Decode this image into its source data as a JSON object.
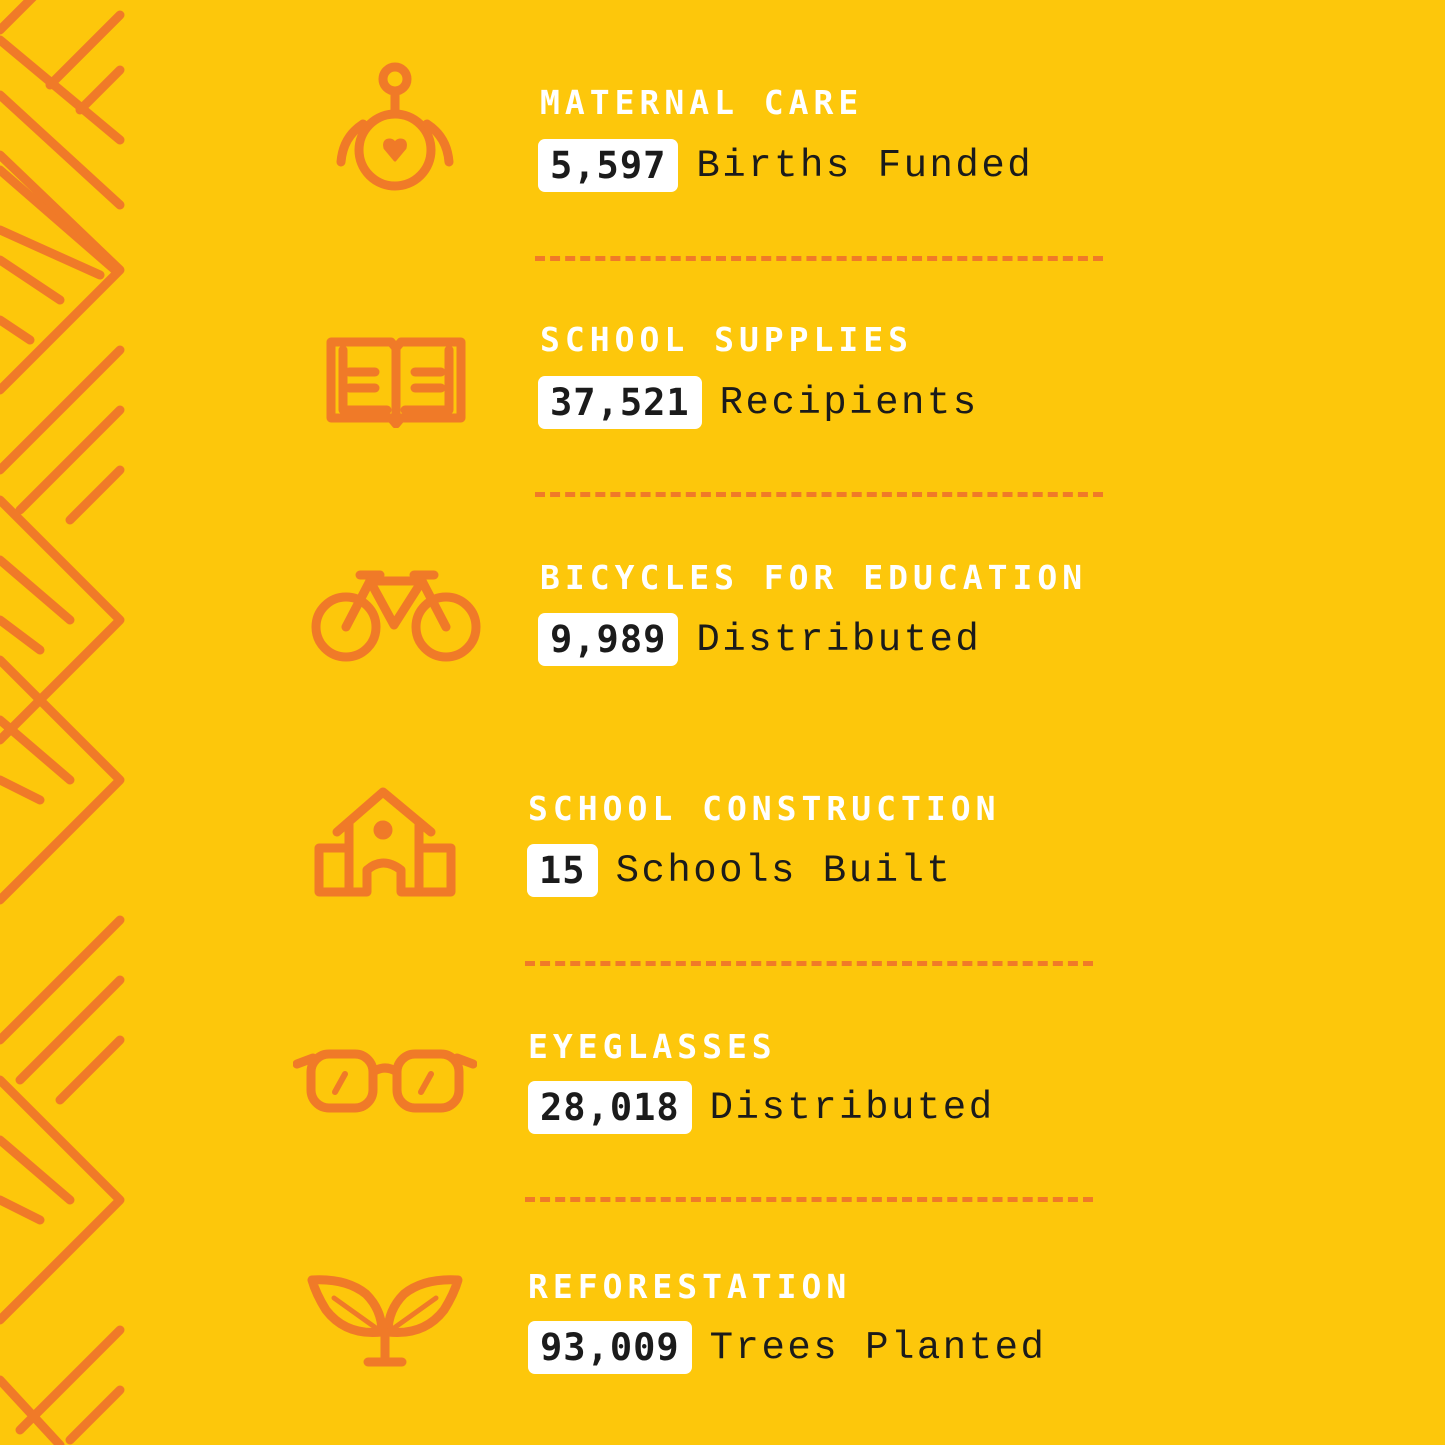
{
  "colors": {
    "background": "#FDC70B",
    "accent": "#F07A28",
    "pattern": "#FFFFFF",
    "text": "#1B1B1B"
  },
  "items": [
    {
      "icon": "mother-heart-icon",
      "title": "MATERNAL CARE",
      "number": "5,597",
      "unit": "Births Funded"
    },
    {
      "icon": "open-book-icon",
      "title": "SCHOOL SUPPLIES",
      "number": "37,521",
      "unit": "Recipients"
    },
    {
      "icon": "bicycle-icon",
      "title": "BICYCLES FOR EDUCATION",
      "number": "9,989",
      "unit": "Distributed"
    },
    {
      "icon": "school-building-icon",
      "title": "SCHOOL CONSTRUCTION",
      "number": "15",
      "unit": "Schools Built"
    },
    {
      "icon": "eyeglasses-icon",
      "title": "EYEGLASSES",
      "number": "28,018",
      "unit": "Distributed"
    },
    {
      "icon": "sprout-icon",
      "title": "REFORESTATION",
      "number": "93,009",
      "unit": "Trees Planted"
    }
  ]
}
